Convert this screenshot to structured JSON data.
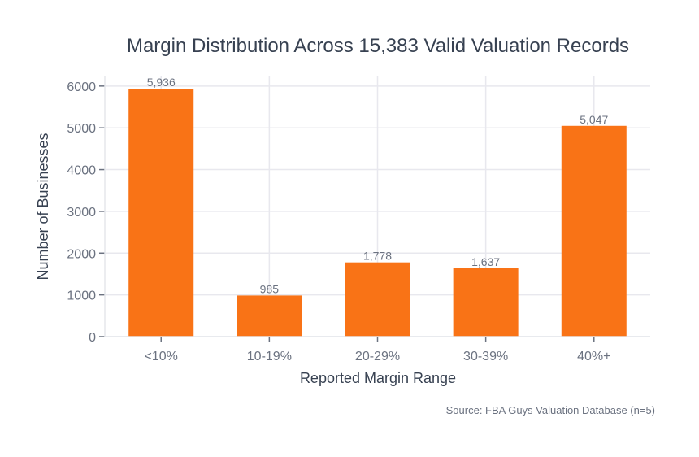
{
  "chart_data": {
    "type": "bar",
    "title": "Margin Distribution Across 15,383 Valid Valuation Records",
    "xlabel": "Reported Margin Range",
    "ylabel": "Number of Businesses",
    "categories": [
      "<10%",
      "10-19%",
      "20-29%",
      "30-39%",
      "40%+"
    ],
    "values": [
      5936,
      985,
      1778,
      1637,
      5047
    ],
    "data_labels": [
      "5,936",
      "985",
      "1,778",
      "1,637",
      "5,047"
    ],
    "ylim": [
      0,
      6250
    ],
    "yticks": [
      0,
      1000,
      2000,
      3000,
      4000,
      5000,
      6000
    ],
    "grid": true,
    "bar_color": "#f97316",
    "source": "Source: FBA Guys Valuation Database (n=5)"
  }
}
